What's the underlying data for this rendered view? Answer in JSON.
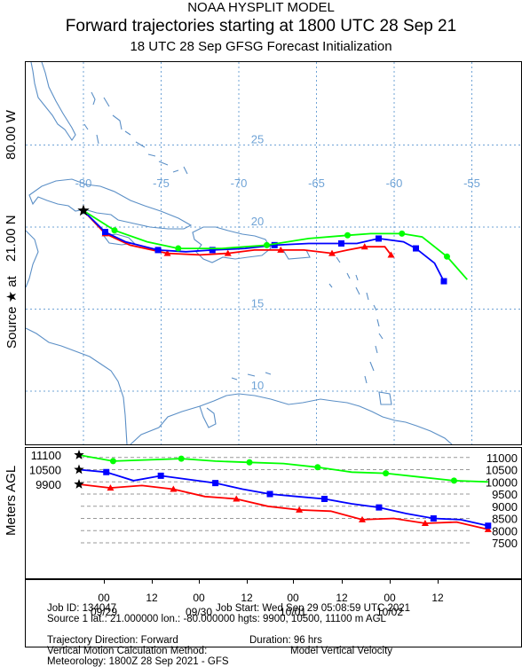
{
  "title_line1": "NOAA HYSPLIT MODEL",
  "title_line2": "Forward trajectories starting at 1800 UTC 28 Sep 21",
  "title_line3": "18 UTC 28 Sep    GFSG  Forecast Initialization",
  "left_axis": {
    "source_label": "Source ★ at",
    "lat": "21.00 N",
    "lon": "80.00 W",
    "altitude_label": "Meters AGL"
  },
  "map": {
    "lon_labels": [
      "-80",
      "-75",
      "-70",
      "-65",
      "-60",
      "-55"
    ],
    "lat_labels": [
      "25",
      "20",
      "15",
      "10"
    ],
    "colors": {
      "red": "#ff0000",
      "blue": "#0000ff",
      "green": "#00ff00",
      "grid": "#6fa3d6",
      "coast": "#5b8fc6"
    }
  },
  "chart_data": {
    "type": "line",
    "title": "Forward trajectories starting at 1800 UTC 28 Sep 21",
    "series": [
      {
        "name": "9900",
        "color": "#ff0000",
        "points": [
          [
            -80,
            21
          ],
          [
            -78.6,
            19.6
          ],
          [
            -77,
            18.9
          ],
          [
            -74.6,
            18.4
          ],
          [
            -72.5,
            18.3
          ],
          [
            -70.7,
            18.4
          ],
          [
            -69,
            18.6
          ],
          [
            -67.3,
            18.6
          ],
          [
            -65.8,
            18.6
          ],
          [
            -64,
            18.4
          ],
          [
            -63,
            18.6
          ],
          [
            -61.9,
            18.8
          ],
          [
            -60.6,
            18.8
          ],
          [
            -60.2,
            18.3
          ]
        ],
        "heights": [
          9900,
          9750,
          9850,
          9700,
          9400,
          9300,
          9000,
          8850,
          8800,
          8450,
          8500,
          8300,
          8350,
          8050
        ]
      },
      {
        "name": "10500",
        "color": "#0000ff",
        "points": [
          [
            -80,
            21
          ],
          [
            -78.6,
            19.7
          ],
          [
            -77.3,
            19.1
          ],
          [
            -75.2,
            18.6
          ],
          [
            -73.4,
            18.5
          ],
          [
            -71.7,
            18.6
          ],
          [
            -69.6,
            18.7
          ],
          [
            -67.7,
            18.9
          ],
          [
            -65.5,
            19.0
          ],
          [
            -63.4,
            19.0
          ],
          [
            -62.4,
            19.0
          ],
          [
            -61.0,
            19.3
          ],
          [
            -59.4,
            19.1
          ],
          [
            -58.6,
            18.7
          ],
          [
            -57.4,
            17.8
          ],
          [
            -56.8,
            16.7
          ]
        ],
        "heights": [
          10500,
          10400,
          10050,
          10250,
          10100,
          9950,
          9700,
          9500,
          9400,
          9300,
          9100,
          8950,
          8700,
          8500,
          8450,
          8200
        ]
      },
      {
        "name": "11100",
        "color": "#00ff00",
        "points": [
          [
            -80,
            21
          ],
          [
            -78,
            19.8
          ],
          [
            -75.9,
            19.1
          ],
          [
            -73.9,
            18.7
          ],
          [
            -71.1,
            18.7
          ],
          [
            -68.2,
            18.9
          ],
          [
            -65.5,
            19.3
          ],
          [
            -63.0,
            19.5
          ],
          [
            -61.5,
            19.6
          ],
          [
            -59.5,
            19.6
          ],
          [
            -58.2,
            19.4
          ],
          [
            -56.6,
            18.2
          ],
          [
            -55.3,
            16.8
          ]
        ],
        "heights": [
          11100,
          10850,
          10900,
          10950,
          10850,
          10800,
          10750,
          10600,
          10400,
          10350,
          10200,
          10050,
          10000
        ]
      }
    ],
    "altitude_ticks": [
      "11000",
      "10500",
      "10000",
      "9500",
      "9000",
      "8500",
      "8000",
      "7500"
    ],
    "altitude_start_labels": [
      "11100",
      "10500",
      "9900"
    ],
    "time_hours": [
      "00",
      "12",
      "00",
      "12",
      "00",
      "12",
      "00",
      "12"
    ],
    "time_dates": [
      "09/29",
      "09/30",
      "10/01",
      "10/02"
    ]
  },
  "info": {
    "job_id": "Job ID: 134047",
    "job_start": "Job Start: Wed Sep 29 05:08:59 UTC 2021",
    "source": "Source 1 lat.: 21.000000   lon.: -80.000000   hgts: 9900, 10500, 11100 m AGL",
    "direction": "Trajectory Direction: Forward",
    "duration": "Duration: 96 hrs",
    "vertical": "Vertical Motion Calculation Method:",
    "vertical_value": "Model Vertical Velocity",
    "meteorology": "Meteorology: 1800Z 28 Sep 2021 - GFS"
  }
}
